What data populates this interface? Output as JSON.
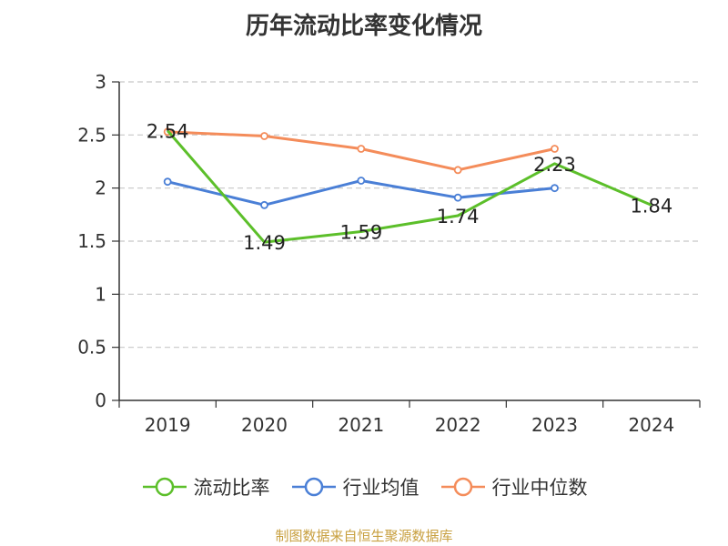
{
  "chart_data": {
    "type": "line",
    "title": "历年流动比率变化情况",
    "categories": [
      "2019",
      "2020",
      "2021",
      "2022",
      "2023",
      "2024"
    ],
    "ylim": [
      0,
      3
    ],
    "yticks": [
      "0",
      "0.5",
      "1",
      "1.5",
      "2",
      "2.5",
      "3"
    ],
    "grid": true,
    "legend_position": "bottom",
    "series": [
      {
        "name": "流动比率",
        "color": "#5cbf2a",
        "values": [
          2.54,
          1.49,
          1.59,
          1.74,
          2.23,
          1.84
        ],
        "labels": [
          "2.54",
          "1.49",
          "1.59",
          "1.74",
          "2.23",
          "1.84"
        ]
      },
      {
        "name": "行业均值",
        "color": "#4a7fd6",
        "values": [
          2.06,
          1.84,
          2.07,
          1.91,
          2.0,
          null
        ]
      },
      {
        "name": "行业中位数",
        "color": "#f48c5a",
        "values": [
          2.53,
          2.49,
          2.37,
          2.17,
          2.37,
          null
        ]
      }
    ]
  },
  "source": "制图数据来自恒生聚源数据库"
}
